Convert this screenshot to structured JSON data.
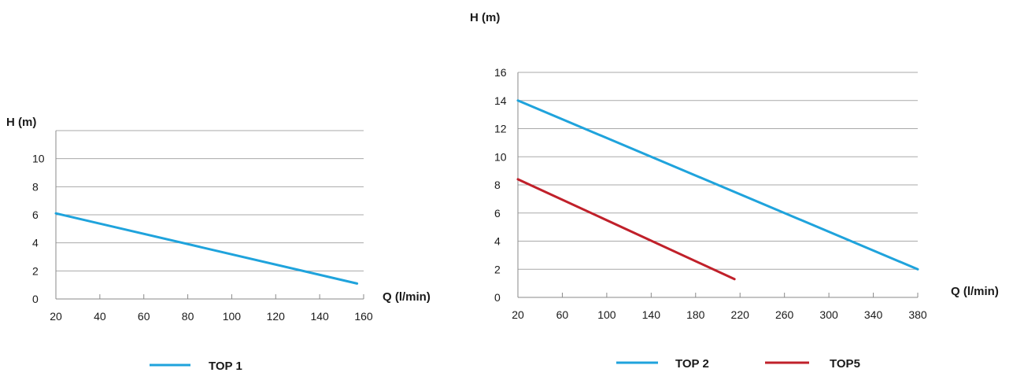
{
  "chart_data": [
    {
      "type": "line",
      "xlabel": "Q (l/min)",
      "ylabel": "H (m)",
      "xlim": [
        20,
        160
      ],
      "ylim": [
        0,
        12
      ],
      "x_ticks": [
        20,
        40,
        60,
        80,
        100,
        120,
        140,
        160
      ],
      "y_ticks": [
        0,
        2,
        4,
        6,
        8,
        10
      ],
      "grid": "horizontal",
      "legend_position": "bottom",
      "series": [
        {
          "name": "TOP 1",
          "color": "#1fa3dc",
          "x": [
            20,
            157
          ],
          "y": [
            6.1,
            1.1
          ]
        }
      ]
    },
    {
      "type": "line",
      "xlabel": "Q (l/min)",
      "ylabel": "H (m)",
      "xlim": [
        20,
        380
      ],
      "ylim": [
        0,
        16
      ],
      "x_ticks": [
        20,
        60,
        100,
        140,
        180,
        220,
        260,
        300,
        340,
        380
      ],
      "y_ticks": [
        0,
        2,
        4,
        6,
        8,
        10,
        12,
        14,
        16
      ],
      "grid": "horizontal",
      "legend_position": "bottom",
      "series": [
        {
          "name": "TOP 2",
          "color": "#1fa3dc",
          "x": [
            20,
            380
          ],
          "y": [
            14,
            2
          ]
        },
        {
          "name": "TOP5",
          "color": "#c0202a",
          "x": [
            20,
            215
          ],
          "y": [
            8.4,
            1.3
          ]
        }
      ]
    }
  ]
}
